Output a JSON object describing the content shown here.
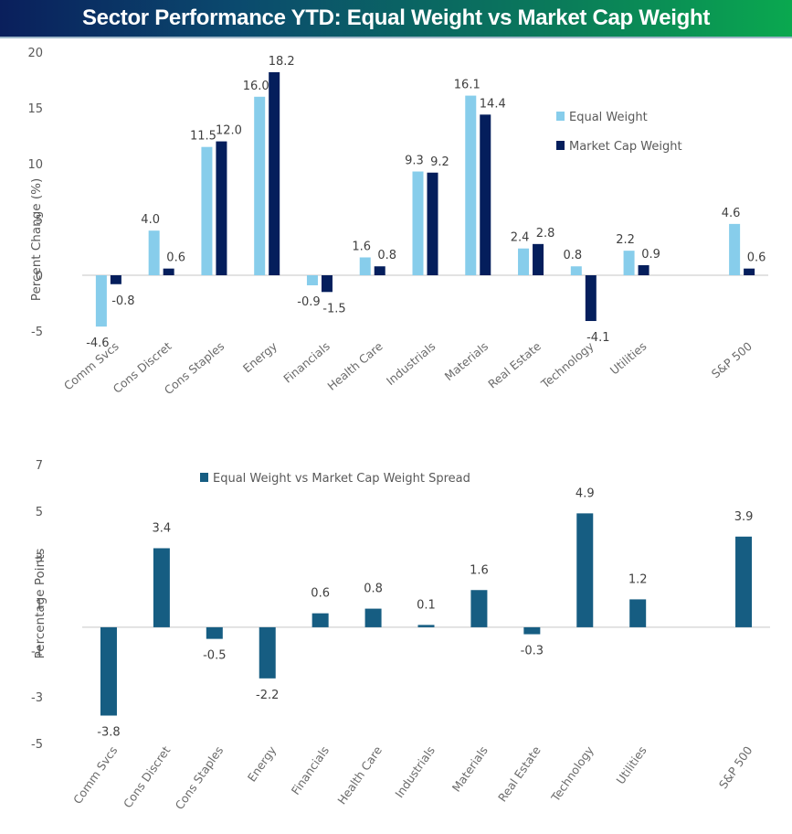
{
  "header": {
    "title": "Sector Performance YTD: Equal Weight vs Market Cap Weight"
  },
  "colors": {
    "equal_weight": "#87cdeb",
    "market_cap_weight": "#041e5c",
    "spread": "#165d82",
    "zero_line": "#d9d9d9"
  },
  "chart_data": [
    {
      "type": "bar",
      "title": "Sector Performance YTD: Equal Weight vs Market Cap Weight",
      "xlabel": "",
      "ylabel": "Percent Change (%)",
      "ylim": [
        -5,
        20
      ],
      "yticks": [
        20,
        15,
        10,
        5,
        0,
        -5
      ],
      "grid": false,
      "legend_position": "top-right",
      "categories": [
        "Comm Svcs",
        "Cons Discret",
        "Cons Staples",
        "Energy",
        "Financials",
        "Health Care",
        "Industrials",
        "Materials",
        "Real Estate",
        "Technology",
        "Utilities",
        "",
        "S&P 500"
      ],
      "series": [
        {
          "name": "Equal Weight",
          "values": [
            -4.6,
            4.0,
            11.5,
            16.0,
            -0.9,
            1.6,
            9.3,
            16.1,
            2.4,
            0.8,
            2.2,
            null,
            4.6
          ],
          "labels": [
            "-4.6",
            "4.0",
            "11.5",
            "16.0",
            "-0.9",
            "1.6",
            "9.3",
            "16.1",
            "2.4",
            "0.8",
            "2.2",
            "",
            "4.6"
          ]
        },
        {
          "name": "Market Cap Weight",
          "values": [
            -0.8,
            0.6,
            12.0,
            18.2,
            -1.5,
            0.8,
            9.2,
            14.4,
            2.8,
            -4.1,
            0.9,
            null,
            0.6
          ],
          "labels": [
            "-0.8",
            "0.6",
            "12.0",
            "18.2",
            "-1.5",
            "0.8",
            "9.2",
            "14.4",
            "2.8",
            "-4.1",
            "0.9",
            "",
            "0.6"
          ]
        }
      ]
    },
    {
      "type": "bar",
      "title": "",
      "xlabel": "",
      "ylabel": "Percentage Points",
      "ylim": [
        -5,
        7
      ],
      "yticks": [
        7,
        5,
        3,
        1,
        -1,
        -3,
        -5
      ],
      "grid": false,
      "legend_position": "top-center",
      "categories": [
        "Comm Svcs",
        "Cons Discret",
        "Cons Staples",
        "Energy",
        "Financials",
        "Health Care",
        "Industrials",
        "Materials",
        "Real Estate",
        "Technology",
        "Utilities",
        "",
        "S&P 500"
      ],
      "series": [
        {
          "name": "Equal Weight vs Market Cap Weight Spread",
          "values": [
            -3.8,
            3.4,
            -0.5,
            -2.2,
            0.6,
            0.8,
            0.1,
            1.6,
            -0.3,
            4.9,
            1.2,
            null,
            3.9
          ],
          "labels": [
            "-3.8",
            "3.4",
            "-0.5",
            "-2.2",
            "0.6",
            "0.8",
            "0.1",
            "1.6",
            "-0.3",
            "4.9",
            "1.2",
            "",
            "3.9"
          ]
        }
      ]
    }
  ]
}
